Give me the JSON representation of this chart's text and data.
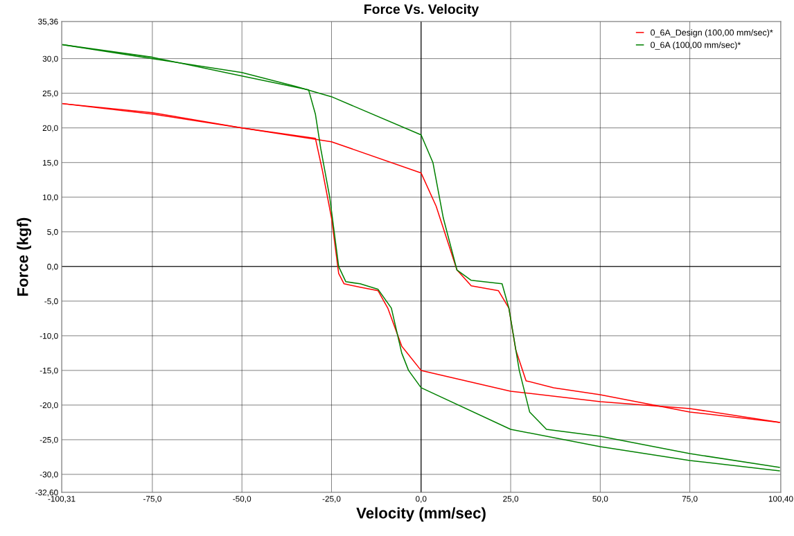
{
  "chart_data": {
    "type": "line",
    "title": "Force Vs. Velocity",
    "xlabel": "Velocity (mm/sec)",
    "ylabel": "Force (kgf)",
    "xlim": [
      -100.31,
      100.4
    ],
    "ylim": [
      -32.6,
      35.36
    ],
    "xticks": [
      {
        "value": -100.31,
        "label": "-100,31"
      },
      {
        "value": -75,
        "label": "-75,0"
      },
      {
        "value": -50,
        "label": "-50,0"
      },
      {
        "value": -25,
        "label": "-25,0"
      },
      {
        "value": 0,
        "label": "0,0"
      },
      {
        "value": 25,
        "label": "25,0"
      },
      {
        "value": 50,
        "label": "50,0"
      },
      {
        "value": 75,
        "label": "75,0"
      },
      {
        "value": 100.4,
        "label": "100,40"
      }
    ],
    "yticks": [
      {
        "value": -32.6,
        "label": "-32,60"
      },
      {
        "value": -30,
        "label": "-30,0"
      },
      {
        "value": -25,
        "label": "-25,0"
      },
      {
        "value": -20,
        "label": "-20,0"
      },
      {
        "value": -15,
        "label": "-15,0"
      },
      {
        "value": -10,
        "label": "-10,0"
      },
      {
        "value": -5,
        "label": "-5,0"
      },
      {
        "value": 0,
        "label": "0,0"
      },
      {
        "value": 5,
        "label": "5,0"
      },
      {
        "value": 10,
        "label": "10,0"
      },
      {
        "value": 15,
        "label": "15,0"
      },
      {
        "value": 20,
        "label": "20,0"
      },
      {
        "value": 25,
        "label": "25,0"
      },
      {
        "value": 30,
        "label": "30,0"
      },
      {
        "value": 35.36,
        "label": "35,36"
      }
    ],
    "grid": true,
    "legend": "top right",
    "marker": "none",
    "line_style": "solid",
    "series": [
      {
        "name": "0_6A_Design (100,00 mm/sec)*",
        "color": "#ff0000",
        "x": [
          -100,
          -75,
          -50,
          -25,
          0,
          4.2,
          10,
          14,
          21.6,
          24.5,
          26.4,
          29.3,
          37,
          50,
          75,
          100
        ],
        "values": [
          23.5,
          22,
          20,
          18,
          13.5,
          8.7,
          -0.5,
          -2.8,
          -3.5,
          -6,
          -12,
          -16.5,
          -17.5,
          -18.5,
          -21,
          -22.5
        ]
      },
      {
        "color": "#ff0000",
        "x": [
          -100,
          -75,
          -50,
          -29.5,
          -27.6,
          -25,
          -23,
          -21.5,
          -17,
          -12,
          -9.3,
          -5.4,
          0,
          25,
          50,
          75,
          100
        ],
        "values": [
          23.5,
          22.2,
          20,
          18.5,
          14,
          7,
          -1,
          -2.5,
          -3,
          -3.5,
          -6,
          -11.5,
          -15,
          -18,
          -19.5,
          -20.5,
          -22.5
        ]
      },
      {
        "name": "0_6A (100,00 mm/sec)*",
        "color": "#008000",
        "x": [
          -100,
          -75,
          -50,
          -35,
          -25,
          0,
          3.3,
          6.2,
          10,
          14,
          22.6,
          24.5,
          27.4,
          30.3,
          35,
          50,
          75,
          100
        ],
        "values": [
          32,
          30,
          28,
          26,
          24.5,
          19,
          15,
          7,
          -0.5,
          -2,
          -2.5,
          -6,
          -15,
          -21,
          -23.5,
          -24.5,
          -27,
          -29
        ]
      },
      {
        "color": "#008000",
        "x": [
          -100,
          -75,
          -50,
          -31.4,
          -29.5,
          -28,
          -25.5,
          -23,
          -21,
          -17,
          -12,
          -8.3,
          -5.4,
          -3.5,
          0,
          25,
          50,
          75,
          100
        ],
        "values": [
          32,
          30.2,
          27.5,
          25.5,
          22,
          17,
          10,
          0,
          -2.2,
          -2.5,
          -3.3,
          -6,
          -12.5,
          -15,
          -17.5,
          -23.5,
          -26,
          -28,
          -29.5
        ]
      }
    ]
  }
}
